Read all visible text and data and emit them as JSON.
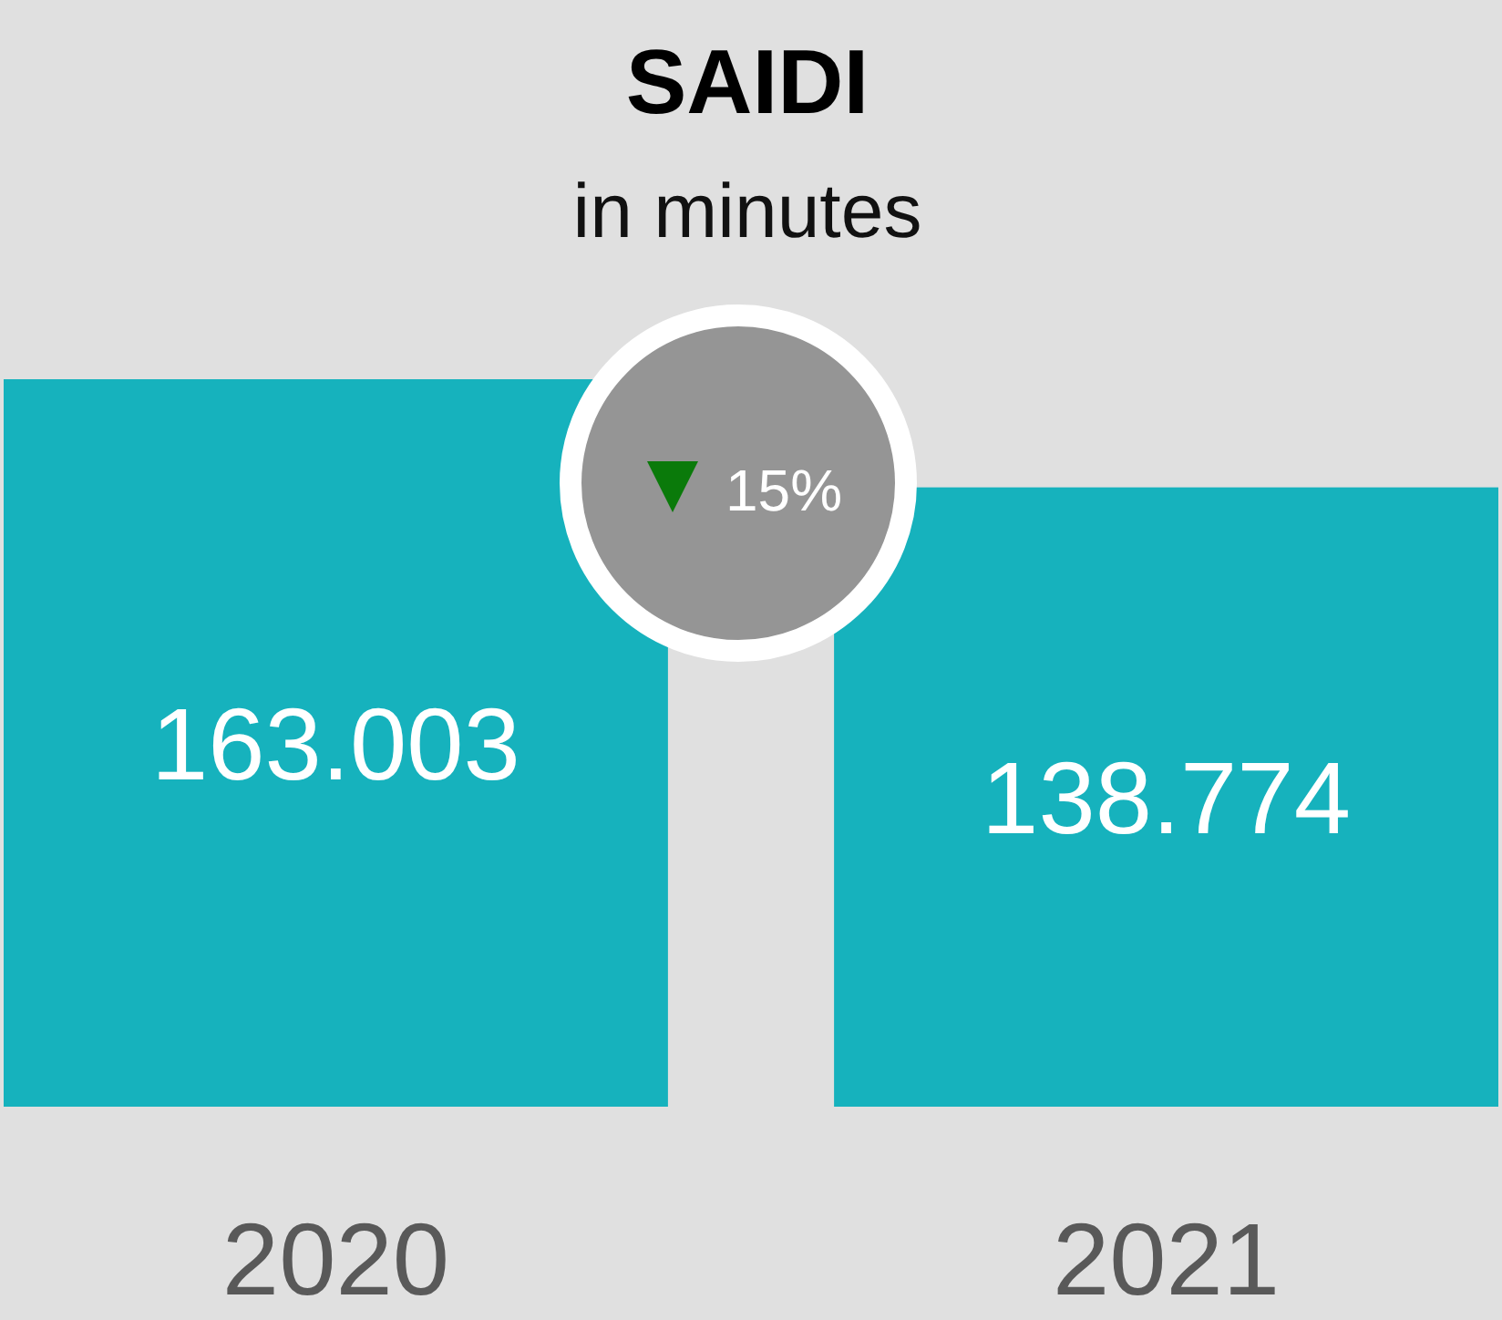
{
  "chart_data": {
    "type": "bar",
    "title": "SAIDI",
    "subtitle": "in minutes",
    "categories": [
      "2020",
      "2021"
    ],
    "values": [
      163.003,
      138.774
    ],
    "color": "#16b2bd",
    "data_labels": true,
    "annotations": [
      "15%"
    ]
  }
}
